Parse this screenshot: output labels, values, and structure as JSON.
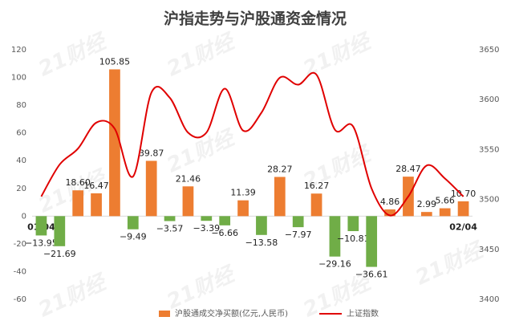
{
  "chart_data": {
    "type": "bar",
    "title": "沪指走势与沪股通资金情况",
    "watermark": "21财经",
    "categories": [
      "01/04",
      null,
      null,
      null,
      null,
      null,
      null,
      null,
      null,
      null,
      null,
      null,
      null,
      null,
      null,
      null,
      null,
      null,
      null,
      null,
      null,
      null,
      null,
      "02/04"
    ],
    "series": [
      {
        "name": "沪股通成交净买额(亿元,人民币)",
        "type": "bar",
        "color": "#ed7d31",
        "negative_color": "#70ad47",
        "values": [
          -13.95,
          -21.69,
          18.6,
          16.47,
          105.85,
          -9.49,
          39.87,
          -3.57,
          21.46,
          -3.39,
          -6.66,
          11.39,
          -13.58,
          28.27,
          -7.97,
          16.27,
          -29.16,
          -10.81,
          -36.61,
          4.86,
          28.47,
          2.99,
          5.66,
          10.7
        ],
        "value_labels": [
          "−13.95",
          "−21.69",
          "18.60",
          "16.47",
          "105.85",
          "−9.49",
          "39.87",
          "−3.57",
          "21.46",
          "−3.39",
          "−6.66",
          "11.39",
          "−13.58",
          "28.27",
          "−7.97",
          "16.27",
          "−29.16",
          "−10.81",
          "−36.61",
          "4.86",
          "28.47",
          "2.99",
          "5.66",
          "10.70"
        ]
      },
      {
        "name": "上证指数",
        "type": "line",
        "axis": "y2",
        "color": "#e00000",
        "values": [
          3503,
          3535,
          3551,
          3577,
          3571,
          3523,
          3607,
          3602,
          3567,
          3567,
          3611,
          3569,
          3587,
          3622,
          3615,
          3625,
          3570,
          3573,
          3511,
          3484,
          3503,
          3534,
          3521,
          3503
        ]
      }
    ],
    "ylim": [
      -60,
      120
    ],
    "yticks": [
      -60,
      -40,
      -20,
      0,
      20,
      40,
      60,
      80,
      100,
      120
    ],
    "y2lim": [
      3400,
      3650
    ],
    "y2ticks": [
      3400,
      3450,
      3500,
      3550,
      3600,
      3650
    ],
    "grid": false
  }
}
